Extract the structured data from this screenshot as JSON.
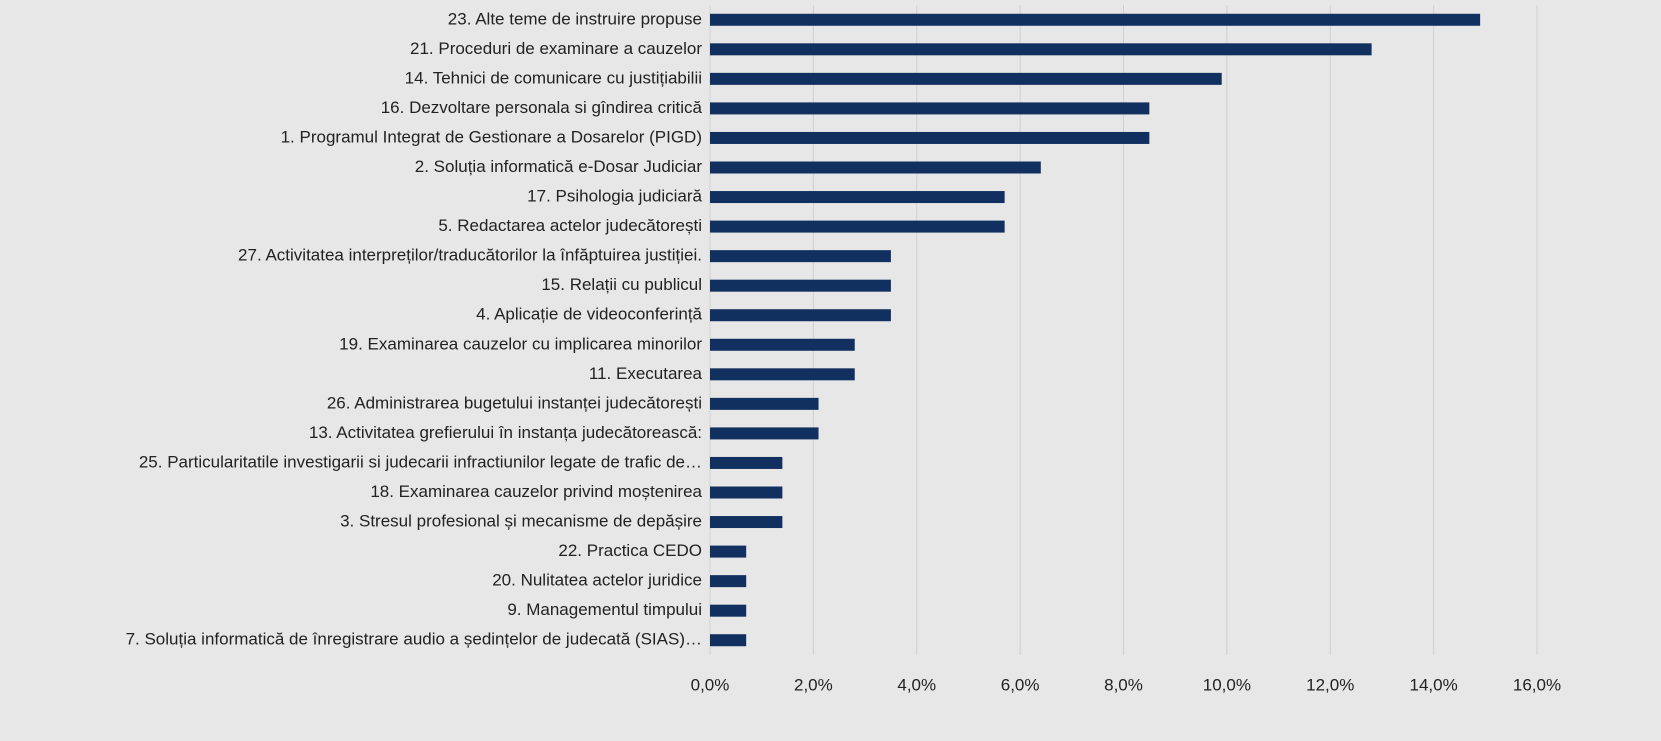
{
  "chart_data": {
    "type": "barh",
    "color": "#12305f",
    "grid": true,
    "categories": [
      "23. Alte teme de instruire propuse",
      "21. Proceduri de examinare a cauzelor",
      "14. Tehnici de comunicare cu justițiabilii",
      "16. Dezvoltare personala si gîndirea critică",
      "1. Programul Integrat de Gestionare a Dosarelor (PIGD)",
      "2. Soluția informatică e-Dosar Judiciar",
      "17. Psihologia judiciară",
      "5. Redactarea actelor judecătorești",
      "27. Activitatea interpreților/traducătorilor la înfăptuirea justiției.",
      "15. Relații cu publicul",
      "4. Aplicație de videoconferință",
      "19. Examinarea cauzelor cu implicarea minorilor",
      "11. Executarea",
      "26. Administrarea bugetului instanței judecătorești",
      "13. Activitatea grefierului în instanța judecătorească:",
      "25. Particularitatile investigarii si judecarii infractiunilor legate de trafic de…",
      "18. Examinarea cauzelor privind moștenirea",
      "3. Stresul profesional și mecanisme de depășire",
      "22. Practica CEDO",
      "20. Nulitatea actelor juridice",
      "9. Managementul timpului",
      "7. Soluția informatică de înregistrare audio a ședințelor de judecată (SIAS)…"
    ],
    "values": [
      14.9,
      12.8,
      9.9,
      8.5,
      8.5,
      6.4,
      5.7,
      5.7,
      3.5,
      3.5,
      3.5,
      2.8,
      2.8,
      2.1,
      2.1,
      1.4,
      1.4,
      1.4,
      0.7,
      0.7,
      0.7,
      0.7
    ],
    "xlim": [
      0,
      16
    ],
    "xticks": [
      {
        "value": 0,
        "label": "0,0%"
      },
      {
        "value": 2,
        "label": "2,0%"
      },
      {
        "value": 4,
        "label": "4,0%"
      },
      {
        "value": 6,
        "label": "6,0%"
      },
      {
        "value": 8,
        "label": "8,0%"
      },
      {
        "value": 10,
        "label": "10,0%"
      },
      {
        "value": 12,
        "label": "12,0%"
      },
      {
        "value": 14,
        "label": "14,0%"
      },
      {
        "value": 16,
        "label": "16,0%"
      }
    ]
  }
}
